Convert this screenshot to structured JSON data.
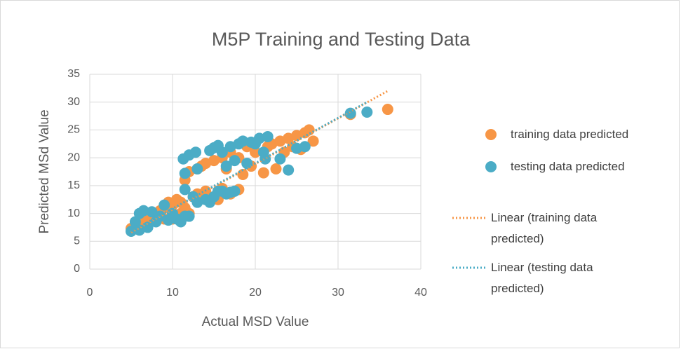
{
  "chart_data": {
    "type": "scatter",
    "title": "M5P Training and Testing Data",
    "x_label": "Actual MSD Value",
    "y_label": "Predicted MSd Value",
    "xlim": [
      0,
      40
    ],
    "xticks": [
      0,
      10,
      20,
      30,
      40
    ],
    "ylim": [
      0,
      35
    ],
    "yticks": [
      0,
      5,
      10,
      15,
      20,
      25,
      30,
      35
    ],
    "grid": true,
    "legend": "right",
    "series": [
      {
        "name": "training data predicted",
        "color": "#f79646",
        "style": "marker",
        "x": [
          5,
          5.5,
          6,
          6.5,
          7,
          7.5,
          8,
          8.5,
          9,
          9.5,
          10,
          10.5,
          11,
          11.5,
          12,
          12.5,
          13,
          14,
          15,
          15.5,
          16,
          17,
          18,
          9,
          10,
          11,
          11.5,
          12,
          13,
          13.5,
          14,
          15,
          16,
          16.5,
          17,
          18,
          18.5,
          19,
          19.5,
          20,
          21,
          21.5,
          22,
          22.5,
          23,
          23.5,
          24,
          24.5,
          25,
          25.5,
          26,
          26.5,
          27,
          31.5,
          36
        ],
        "values": [
          7.3,
          7.8,
          8.2,
          8.8,
          9,
          9.5,
          10,
          10.5,
          11,
          12,
          11.5,
          12.5,
          12,
          11,
          10,
          13,
          13.5,
          14,
          13,
          12.5,
          14.5,
          13.5,
          14.3,
          9,
          9,
          10,
          16,
          17.5,
          18,
          18.5,
          19,
          19.5,
          20,
          18,
          21,
          20,
          17,
          22,
          18.5,
          21,
          17.3,
          22,
          22.5,
          18,
          23,
          21,
          23.5,
          22,
          24,
          21.5,
          24.5,
          25,
          23,
          27.8,
          28.7
        ]
      },
      {
        "name": "testing data predicted",
        "color": "#4bacc6",
        "style": "marker",
        "x": [
          5,
          5.5,
          6,
          6,
          6.5,
          7,
          7.5,
          8,
          8.5,
          9,
          9.5,
          10,
          10.5,
          11,
          11.5,
          11.5,
          12,
          12.5,
          13,
          14,
          14.5,
          15,
          15.5,
          16,
          16.5,
          17,
          17.5,
          11.3,
          11.5,
          12,
          12.8,
          13,
          14.5,
          15,
          15.5,
          16,
          16.5,
          17,
          17.5,
          18,
          18.5,
          19,
          19.5,
          20,
          20.5,
          21,
          21.2,
          21.5,
          23,
          24,
          25,
          26,
          31.5,
          33.5
        ],
        "values": [
          6.8,
          8.5,
          7,
          10,
          10.5,
          7.5,
          10.3,
          8.5,
          9.5,
          11.5,
          8.8,
          10,
          9,
          8.5,
          9.5,
          14.3,
          9.5,
          13,
          12,
          12.5,
          12,
          13,
          14,
          14,
          13.5,
          13.8,
          14,
          19.8,
          17.2,
          20.5,
          21,
          18,
          21.3,
          21.8,
          22.2,
          21,
          18.5,
          22,
          19.5,
          22.5,
          23,
          19,
          22.8,
          22.5,
          23.5,
          21,
          19.8,
          23.8,
          19.8,
          17.8,
          21.7,
          22,
          28,
          28.2
        ]
      },
      {
        "name": "Linear (training data predicted)",
        "color": "#f79646",
        "style": "dotted",
        "x": [
          5,
          36
        ],
        "values": [
          6.6,
          32
        ]
      },
      {
        "name": "Linear (testing data predicted)",
        "color": "#4bacc6",
        "style": "dotted",
        "x": [
          5,
          33.5
        ],
        "values": [
          6.8,
          30
        ]
      }
    ]
  }
}
